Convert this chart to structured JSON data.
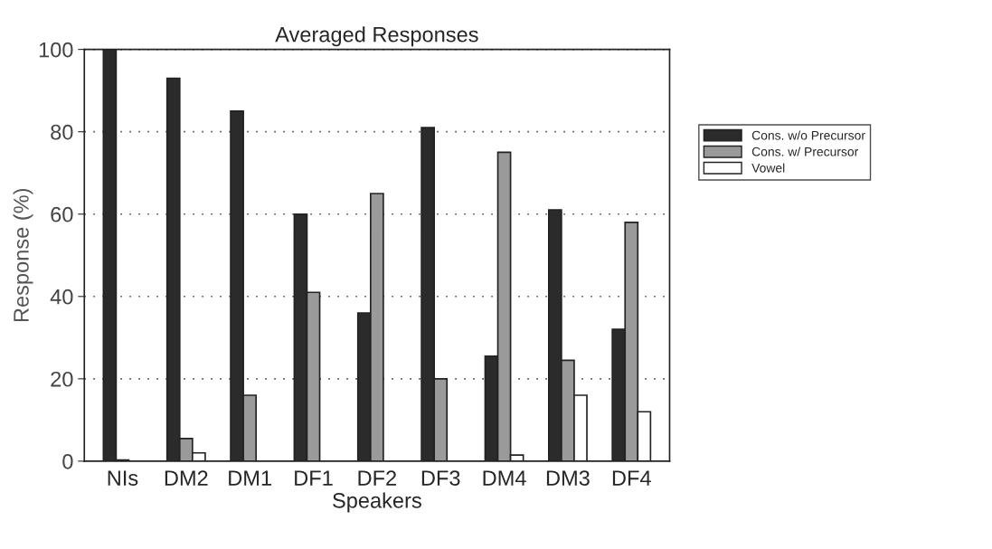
{
  "chart_data": {
    "type": "bar",
    "title": "Averaged Responses",
    "xlabel": "Speakers",
    "ylabel": "Response (%)",
    "categories": [
      "NIs",
      "DM2",
      "DM1",
      "DF1",
      "DF2",
      "DF3",
      "DM4",
      "DM3",
      "DF4"
    ],
    "series": [
      {
        "name": "Cons. w/o Precursor",
        "color": "#2b2b2b",
        "values": [
          100,
          93,
          85,
          60,
          36,
          81,
          25.5,
          61,
          32
        ]
      },
      {
        "name": "Cons. w/ Precursor",
        "color": "#9a9a9a",
        "values": [
          0.3,
          5.5,
          16,
          41,
          65,
          20,
          75,
          24.5,
          58
        ]
      },
      {
        "name": "Vowel",
        "color": "#ffffff",
        "values": [
          0,
          2,
          0,
          0,
          0,
          0,
          1.5,
          16,
          12
        ]
      }
    ],
    "ylim": [
      0,
      100
    ],
    "yticks": [
      0,
      20,
      40,
      60,
      80,
      100
    ],
    "grid": "y",
    "legend": "right"
  }
}
